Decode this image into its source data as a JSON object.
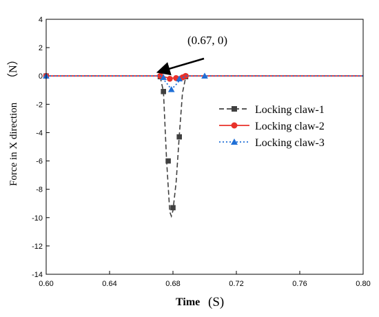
{
  "chart_data": {
    "type": "line",
    "xlabel_main": "Time",
    "xlabel_unit": "(S)",
    "ylabel_main": "Force in X direction",
    "ylabel_unit": "（N）",
    "xlim": [
      0.6,
      0.8
    ],
    "ylim": [
      -14,
      4
    ],
    "xticks": [
      0.6,
      0.64,
      0.68,
      0.72,
      0.76,
      0.8
    ],
    "xtick_labels": [
      "0.60",
      "0.64",
      "0.68",
      "0.72",
      "0.76",
      "0.80"
    ],
    "yticks": [
      4,
      2,
      0,
      -2,
      -4,
      -6,
      -8,
      -10,
      -12,
      -14
    ],
    "ytick_labels": [
      "4",
      "2",
      "0",
      "-2",
      "-4",
      "-6",
      "-8",
      "-10",
      "-12",
      "-14"
    ],
    "grid": false,
    "legend_position": "right",
    "annotation": {
      "text": "(0.67, 0)",
      "x": 0.67,
      "y": 0
    },
    "series": [
      {
        "name": "Locking claw-1",
        "color": "#404040",
        "marker": "square",
        "line": "dashed",
        "curve": [
          [
            0.6,
            0
          ],
          [
            0.67,
            0
          ],
          [
            0.672,
            -0.1
          ],
          [
            0.674,
            -1.1
          ],
          [
            0.676,
            -6.0
          ],
          [
            0.678,
            -9.6
          ],
          [
            0.679,
            -9.9
          ],
          [
            0.68,
            -9.5
          ],
          [
            0.682,
            -7.5
          ],
          [
            0.684,
            -4.2
          ],
          [
            0.686,
            -1.2
          ],
          [
            0.688,
            -0.1
          ],
          [
            0.69,
            0
          ],
          [
            0.8,
            0
          ]
        ],
        "points": [
          [
            0.6,
            0
          ],
          [
            0.672,
            -0.05
          ],
          [
            0.674,
            -1.1
          ],
          [
            0.677,
            -6.0
          ],
          [
            0.68,
            -9.3
          ],
          [
            0.684,
            -4.3
          ],
          [
            0.688,
            -0.05
          ]
        ]
      },
      {
        "name": "Locking claw-2",
        "color": "#e8312a",
        "marker": "circle",
        "line": "solid",
        "curve": [
          [
            0.6,
            0
          ],
          [
            0.672,
            0
          ],
          [
            0.676,
            -0.1
          ],
          [
            0.678,
            -0.2
          ],
          [
            0.68,
            -0.15
          ],
          [
            0.684,
            -0.1
          ],
          [
            0.688,
            0
          ],
          [
            0.8,
            0
          ]
        ],
        "points": [
          [
            0.6,
            0
          ],
          [
            0.672,
            0
          ],
          [
            0.678,
            -0.2
          ],
          [
            0.682,
            -0.15
          ],
          [
            0.686,
            -0.1
          ],
          [
            0.688,
            0
          ]
        ]
      },
      {
        "name": "Locking claw-3",
        "color": "#1f6fd6",
        "marker": "triangle",
        "line": "dotted",
        "curve": [
          [
            0.6,
            0
          ],
          [
            0.672,
            0
          ],
          [
            0.676,
            -0.5
          ],
          [
            0.679,
            -0.95
          ],
          [
            0.682,
            -0.6
          ],
          [
            0.685,
            -0.2
          ],
          [
            0.688,
            0
          ],
          [
            0.8,
            0
          ]
        ],
        "points": [
          [
            0.6,
            0
          ],
          [
            0.674,
            -0.1
          ],
          [
            0.679,
            -0.95
          ],
          [
            0.684,
            -0.2
          ],
          [
            0.7,
            0
          ]
        ]
      }
    ]
  }
}
